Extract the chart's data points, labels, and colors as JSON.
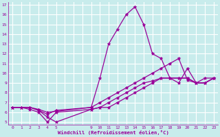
{
  "xlabel": "Windchill (Refroidissement éolien,°C)",
  "bg_color": "#c8ecec",
  "line_color": "#990099",
  "grid_color": "#ffffff",
  "xlim": [
    -0.5,
    23.5
  ],
  "ylim": [
    4.7,
    17.3
  ],
  "xtick_positions": [
    0,
    1,
    2,
    3,
    4,
    5,
    6,
    7,
    8,
    9,
    10,
    11,
    12,
    13,
    14,
    15,
    16,
    17,
    18,
    19,
    20,
    21,
    22,
    23
  ],
  "xtick_labels": [
    "0",
    "1",
    "2",
    "3",
    "4",
    "5",
    "",
    "",
    "",
    "9",
    "10",
    "11",
    "12",
    "13",
    "14",
    "15",
    "16",
    "17",
    "18",
    "19",
    "20",
    "21",
    "22",
    "23"
  ],
  "ytick_positions": [
    5,
    6,
    7,
    8,
    9,
    10,
    11,
    12,
    13,
    14,
    15,
    16,
    17
  ],
  "ytick_labels": [
    "5",
    "6",
    "7",
    "8",
    "9",
    "10",
    "11",
    "12",
    "13",
    "14",
    "15",
    "16",
    "17"
  ],
  "series": [
    {
      "x": [
        0,
        1,
        2,
        3,
        4,
        5,
        9,
        10,
        11,
        12,
        13,
        14,
        15,
        16,
        17,
        18,
        19,
        20,
        21,
        22,
        23
      ],
      "y": [
        6.5,
        6.5,
        6.5,
        6.3,
        6.0,
        6.1,
        6.5,
        9.5,
        13.0,
        14.5,
        16.0,
        16.8,
        15.0,
        12.0,
        11.5,
        9.5,
        9.0,
        10.5,
        9.0,
        9.5,
        9.5
      ]
    },
    {
      "x": [
        0,
        1,
        2,
        3,
        4,
        5,
        9,
        10,
        11,
        12,
        13,
        14,
        15,
        16,
        17,
        18,
        19,
        20,
        21,
        22,
        23
      ],
      "y": [
        6.5,
        6.5,
        6.5,
        6.2,
        5.8,
        6.2,
        6.5,
        7.0,
        7.5,
        8.0,
        8.5,
        9.0,
        9.5,
        10.0,
        10.5,
        11.0,
        11.5,
        9.3,
        9.0,
        9.0,
        9.5
      ]
    },
    {
      "x": [
        0,
        1,
        2,
        3,
        4,
        5,
        9,
        10,
        11,
        12,
        13,
        14,
        15,
        16,
        17,
        18,
        19,
        20,
        21,
        22,
        23
      ],
      "y": [
        6.5,
        6.5,
        6.5,
        6.2,
        5.5,
        5.0,
        6.3,
        6.5,
        7.0,
        7.5,
        8.0,
        8.5,
        9.0,
        9.2,
        9.5,
        9.5,
        9.5,
        9.5,
        9.0,
        9.0,
        9.5
      ]
    },
    {
      "x": [
        0,
        1,
        2,
        3,
        4,
        5,
        9,
        10,
        11,
        12,
        13,
        14,
        15,
        16,
        17,
        18,
        19,
        20,
        21,
        22,
        23
      ],
      "y": [
        6.5,
        6.5,
        6.3,
        6.0,
        5.0,
        6.0,
        6.3,
        6.5,
        6.5,
        7.0,
        7.5,
        8.0,
        8.5,
        9.0,
        9.5,
        9.5,
        9.5,
        9.5,
        9.0,
        9.0,
        9.5
      ]
    }
  ]
}
